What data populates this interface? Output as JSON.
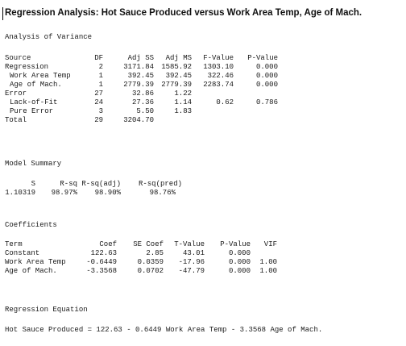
{
  "title": "Regression Analysis: Hot Sauce Produced versus Work Area Temp, Age of Mach.",
  "anova": {
    "heading": "Analysis of Variance",
    "columns": [
      "Source",
      "DF",
      "Adj SS",
      "Adj MS",
      "F-Value",
      "P-Value"
    ],
    "rows": [
      {
        "source": "Regression",
        "df": "2",
        "adj_ss": "3171.84",
        "adj_ms": "1585.92",
        "f": "1303.10",
        "p": "0.000"
      },
      {
        "source": "Work Area Temp",
        "df": "1",
        "adj_ss": "392.45",
        "adj_ms": "392.45",
        "f": "322.46",
        "p": "0.000"
      },
      {
        "source": "Age of Mach.",
        "df": "1",
        "adj_ss": "2779.39",
        "adj_ms": "2779.39",
        "f": "2283.74",
        "p": "0.000"
      },
      {
        "source": "Error",
        "df": "27",
        "adj_ss": "32.86",
        "adj_ms": "1.22",
        "f": "",
        "p": ""
      },
      {
        "source": "Lack-of-Fit",
        "df": "24",
        "adj_ss": "27.36",
        "adj_ms": "1.14",
        "f": "0.62",
        "p": "0.786"
      },
      {
        "source": "Pure Error",
        "df": "3",
        "adj_ss": "5.50",
        "adj_ms": "1.83",
        "f": "",
        "p": ""
      },
      {
        "source": "Total",
        "df": "29",
        "adj_ss": "3204.70",
        "adj_ms": "",
        "f": "",
        "p": ""
      }
    ]
  },
  "model_summary": {
    "heading": "Model Summary",
    "columns": [
      "S",
      "R-sq",
      "R-sq(adj)",
      "R-sq(pred)"
    ],
    "values": [
      "1.10319",
      "98.97%",
      "98.90%",
      "98.76%"
    ]
  },
  "coefficients": {
    "heading": "Coefficients",
    "columns": [
      "Term",
      "Coef",
      "SE Coef",
      "T-Value",
      "P-Value",
      "VIF"
    ],
    "rows": [
      {
        "term": "Constant",
        "coef": "122.63",
        "se": "2.85",
        "t": "43.01",
        "p": "0.000",
        "vif": ""
      },
      {
        "term": "Work Area Temp",
        "coef": "-0.6449",
        "se": "0.0359",
        "t": "-17.96",
        "p": "0.000",
        "vif": "1.00"
      },
      {
        "term": "Age of Mach.",
        "coef": "-3.3568",
        "se": "0.0702",
        "t": "-47.79",
        "p": "0.000",
        "vif": "1.00"
      }
    ]
  },
  "equation": {
    "heading": "Regression Equation",
    "text": "Hot Sauce Produced = 122.63 - 0.6449 Work Area Temp - 3.3568 Age of Mach."
  }
}
